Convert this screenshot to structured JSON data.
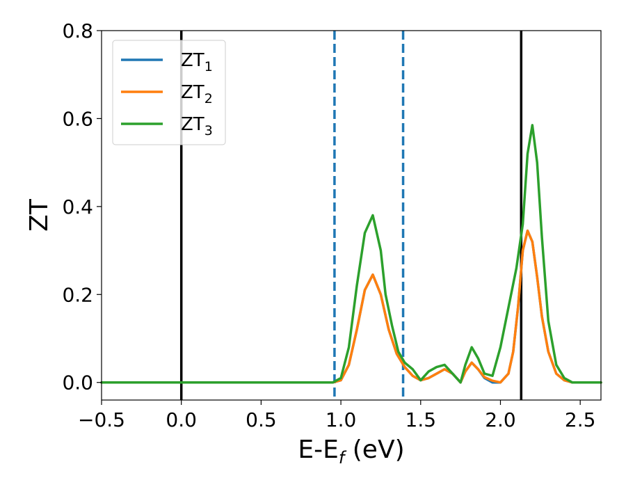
{
  "chart_data": {
    "type": "line",
    "title": "",
    "xlabel": "E-E",
    "xlabel_sub": "f",
    "xlabel_unit": " (eV)",
    "ylabel": "ZT",
    "xlim": [
      -0.5,
      2.63
    ],
    "ylim": [
      -0.04,
      0.8
    ],
    "x_ticks": [
      -0.5,
      0.0,
      0.5,
      1.0,
      1.5,
      2.0,
      2.5
    ],
    "x_tick_labels": [
      "−0.5",
      "0.0",
      "0.5",
      "1.0",
      "1.5",
      "2.0",
      "2.5"
    ],
    "y_ticks": [
      0.0,
      0.2,
      0.4,
      0.6,
      0.8
    ],
    "y_tick_labels": [
      "0.0",
      "0.2",
      "0.4",
      "0.6",
      "0.8"
    ],
    "grid": false,
    "legend_position": "top-left",
    "vlines": [
      {
        "x": 0.0,
        "style": "solid",
        "color": "#000000"
      },
      {
        "x": 2.13,
        "style": "solid",
        "color": "#000000"
      },
      {
        "x": 0.96,
        "style": "dashed",
        "color": "#1f77b4"
      },
      {
        "x": 1.39,
        "style": "dashed",
        "color": "#1f77b4"
      }
    ],
    "series": [
      {
        "name": "ZT",
        "name_sub": "1",
        "color": "#1f77b4",
        "x": [
          -0.5,
          0.9,
          0.95,
          1.0,
          1.05,
          1.1,
          1.15,
          1.2,
          1.25,
          1.3,
          1.35,
          1.4,
          1.45,
          1.5,
          1.55,
          1.6,
          1.65,
          1.7,
          1.75,
          1.78,
          1.82,
          1.86,
          1.9,
          1.95,
          2.0,
          2.05,
          2.08,
          2.11,
          2.14,
          2.17,
          2.2,
          2.23,
          2.26,
          2.3,
          2.35,
          2.4,
          2.45,
          2.5,
          2.63
        ],
        "y": [
          0.0,
          0.0,
          0.0,
          0.005,
          0.04,
          0.12,
          0.21,
          0.245,
          0.2,
          0.12,
          0.065,
          0.035,
          0.015,
          0.005,
          0.01,
          0.02,
          0.03,
          0.02,
          0.0,
          0.025,
          0.045,
          0.03,
          0.01,
          0.0,
          0.0,
          0.02,
          0.07,
          0.17,
          0.3,
          0.345,
          0.32,
          0.24,
          0.15,
          0.07,
          0.02,
          0.005,
          0.0,
          0.0,
          0.0
        ]
      },
      {
        "name": "ZT",
        "name_sub": "2",
        "color": "#ff7f0e",
        "x": [
          -0.5,
          0.9,
          0.95,
          1.0,
          1.05,
          1.1,
          1.15,
          1.2,
          1.25,
          1.3,
          1.35,
          1.4,
          1.45,
          1.5,
          1.55,
          1.6,
          1.65,
          1.7,
          1.75,
          1.78,
          1.82,
          1.86,
          1.9,
          1.95,
          2.0,
          2.05,
          2.08,
          2.11,
          2.14,
          2.17,
          2.2,
          2.23,
          2.26,
          2.3,
          2.35,
          2.4,
          2.45,
          2.5,
          2.63
        ],
        "y": [
          0.0,
          0.0,
          0.0,
          0.005,
          0.04,
          0.12,
          0.21,
          0.245,
          0.2,
          0.12,
          0.065,
          0.035,
          0.015,
          0.005,
          0.01,
          0.02,
          0.03,
          0.02,
          0.0,
          0.025,
          0.045,
          0.03,
          0.012,
          0.004,
          0.0,
          0.02,
          0.07,
          0.17,
          0.3,
          0.345,
          0.32,
          0.24,
          0.15,
          0.07,
          0.02,
          0.005,
          0.0,
          0.0,
          0.0
        ]
      },
      {
        "name": "ZT",
        "name_sub": "3",
        "color": "#2ca02c",
        "x": [
          -0.5,
          0.9,
          0.95,
          1.0,
          1.05,
          1.1,
          1.15,
          1.2,
          1.25,
          1.28,
          1.32,
          1.36,
          1.4,
          1.45,
          1.5,
          1.55,
          1.6,
          1.65,
          1.7,
          1.75,
          1.78,
          1.82,
          1.86,
          1.9,
          1.95,
          2.0,
          2.05,
          2.1,
          2.14,
          2.17,
          2.2,
          2.23,
          2.26,
          2.3,
          2.35,
          2.4,
          2.45,
          2.5,
          2.63
        ],
        "y": [
          0.0,
          0.0,
          0.0,
          0.01,
          0.08,
          0.22,
          0.34,
          0.38,
          0.3,
          0.2,
          0.13,
          0.07,
          0.045,
          0.03,
          0.005,
          0.025,
          0.035,
          0.04,
          0.02,
          0.0,
          0.04,
          0.08,
          0.055,
          0.02,
          0.015,
          0.08,
          0.17,
          0.26,
          0.36,
          0.52,
          0.585,
          0.5,
          0.33,
          0.14,
          0.04,
          0.01,
          0.0,
          0.0,
          0.0
        ]
      }
    ]
  }
}
